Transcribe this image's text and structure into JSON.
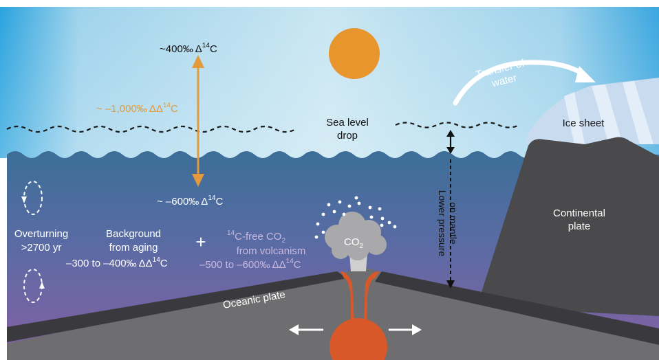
{
  "labels": {
    "atm_value": "~400‰",
    "atm_unit": "Δ",
    "atm_sup": "14",
    "atm_tail": "C",
    "diff_value": "~ –1,000‰",
    "diff_unit": "ΔΔ",
    "diff_sup": "14",
    "diff_tail": "C",
    "ocean_value": "~ –600‰",
    "ocean_unit": "Δ",
    "ocean_sup": "14",
    "ocean_tail": "C",
    "sea_level_line1": "Sea level",
    "sea_level_line2": "drop",
    "transfer_line1": "Transfer of",
    "transfer_line2": "water",
    "ice_sheet": "Ice sheet",
    "continental_line1": "Continental",
    "continental_line2": "plate",
    "pressure_line1": "Lower pressure",
    "pressure_line2": "on mantle",
    "overturning_line1": "Overturning",
    "overturning_line2": ">2700 yr",
    "background_line1": "Background",
    "background_line2": "from aging",
    "background_value": "–300 to –400‰",
    "background_unit": "ΔΔ",
    "background_sup": "14",
    "background_tail": "C",
    "plus": "+",
    "volcanic_sup": "14",
    "volcanic_line1": "C-free CO",
    "volcanic_sub": "2",
    "volcanic_line2": "from volcanism",
    "volcanic_value": "–500 to –600‰",
    "volcanic_unit": "ΔΔ",
    "volcanic_vsup": "14",
    "volcanic_tail": "C",
    "co2_main": "CO",
    "co2_sub": "2",
    "oceanic_plate": "Oceanic plate"
  },
  "colors": {
    "orange_arrow": "#e39a3b",
    "sun": "#e8952e",
    "magma": "#d9582a",
    "ocean_top": "#3f6f98",
    "ocean_bottom": "#7b5fa0",
    "plate_dark": "#3f3f43",
    "mantle_grey": "#6e6e70",
    "continent": "#4a4a4c",
    "ice": "#c9dcef",
    "faded_text": "#c9b9e0",
    "diff_text": "#e39a3b"
  }
}
